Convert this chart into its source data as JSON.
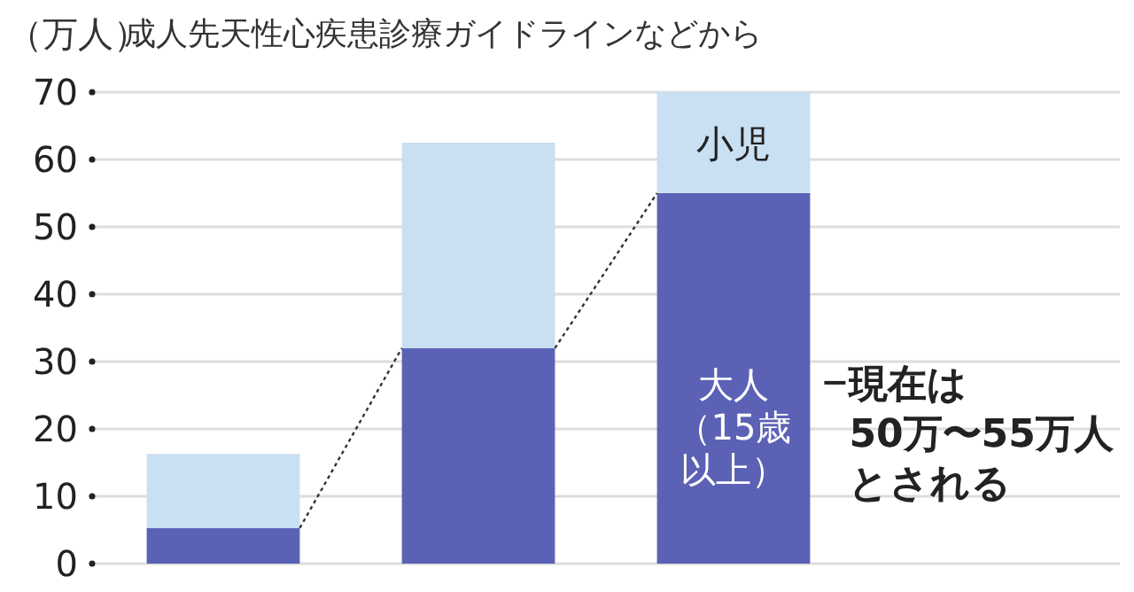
{
  "chart_data": {
    "type": "bar",
    "ylabel": "（万人）",
    "annotations": [
      "成人先天性心疾患診療ガイドラインなどから",
      "現在は50万〜55万人とされる"
    ],
    "categories": [
      null,
      null,
      null
    ],
    "series": [
      {
        "name": "大人（15歳以上）",
        "color": "#5b62b5",
        "values": [
          5.3,
          32,
          55
        ]
      },
      {
        "name": "小児",
        "color": "#c9dff2",
        "values": [
          11,
          30.5,
          15
        ]
      }
    ],
    "stacked": true,
    "ylim": [
      0,
      70
    ],
    "yticks": [
      0,
      10,
      20,
      30,
      40,
      50,
      60,
      70
    ],
    "grid": "y"
  }
}
